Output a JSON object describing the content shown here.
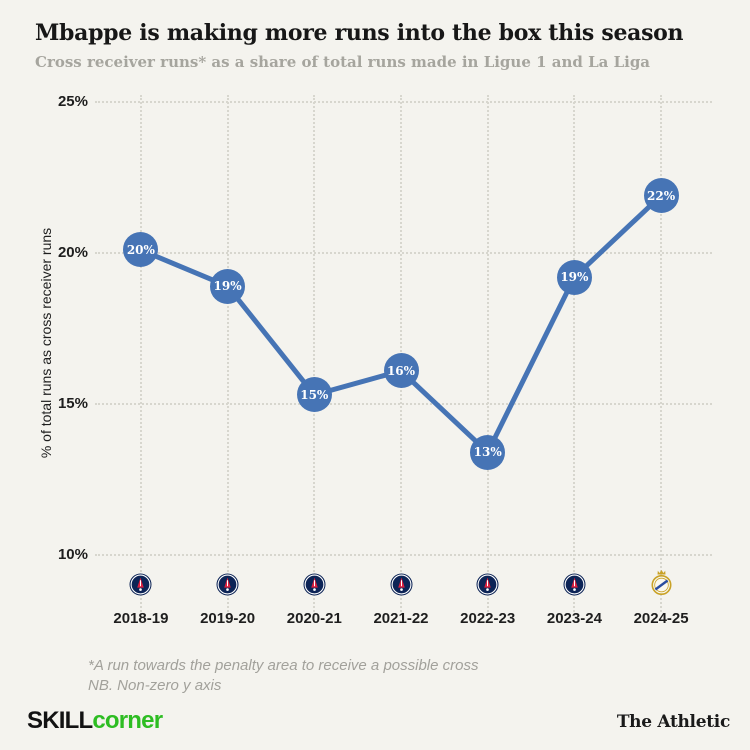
{
  "page": {
    "title": "Mbappe is making more runs into the box this season",
    "subtitle": "Cross receiver runs* as a share of total runs made in Ligue 1 and La Liga",
    "footnote_line1": "*A run towards the penalty area to receive a possible cross",
    "footnote_line2": "NB. Non-zero y axis",
    "brand_left_skill": "SKILL",
    "brand_left_corner": "corner",
    "brand_right": "The Athletic"
  },
  "colors": {
    "background": "#f4f3ee",
    "accent_blue": "#4674b5",
    "brand_green": "#2dbd22",
    "grid": "#d7d6ce",
    "psg_navy": "#0d2456",
    "psg_red": "#da2040",
    "real_madrid_gold": "#c9a227",
    "real_madrid_blue": "#2b4da0"
  },
  "chart_data": {
    "type": "line",
    "title": "Mbappe is making more runs into the box this season",
    "subtitle": "Cross receiver runs* as a share of total runs made in Ligue 1 and La Liga",
    "categories": [
      "2018-19",
      "2019-20",
      "2020-21",
      "2021-22",
      "2022-23",
      "2023-24",
      "2024-25"
    ],
    "values": [
      20,
      19,
      15,
      16,
      13,
      19,
      22
    ],
    "values_precise": [
      20.1,
      18.9,
      15.3,
      16.1,
      13.4,
      19.2,
      21.9
    ],
    "point_labels": [
      "20%",
      "19%",
      "15%",
      "16%",
      "13%",
      "19%",
      "22%"
    ],
    "badges": [
      "psg",
      "psg",
      "psg",
      "psg",
      "psg",
      "psg",
      "real-madrid"
    ],
    "xlabel": "",
    "ylabel": "% of total runs as cross receiver runs",
    "yticks": [
      25,
      20,
      15,
      10
    ],
    "ytick_labels": [
      "25%",
      "20%",
      "15%",
      "10%"
    ],
    "ylim": [
      10,
      25
    ],
    "grid": "dotted",
    "legend": "none",
    "line_color": "#4674b5",
    "point_color": "#4674b5",
    "point_label_color": "#ffffff"
  }
}
